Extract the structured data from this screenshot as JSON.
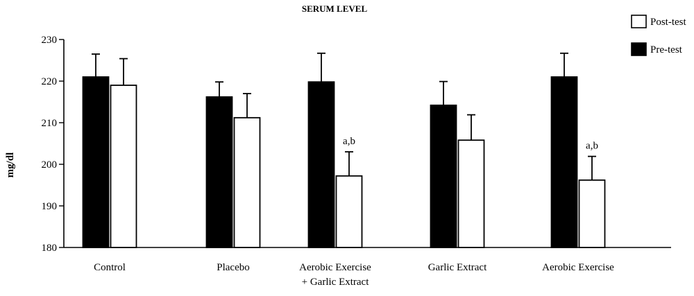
{
  "chart_data": {
    "type": "bar",
    "title": "SERUM LEVEL",
    "ylabel": "mg/dl",
    "xlabel": "",
    "ylim": [
      180,
      230
    ],
    "yticks": [
      180,
      190,
      200,
      210,
      220,
      230
    ],
    "grid": false,
    "legend_position": "top-right",
    "categories": [
      "Control",
      "Placebo",
      "Aerobic Exercise\n+ Garlic Extract",
      "Garlic Extract",
      "Aerobic Exercise"
    ],
    "series": [
      {
        "name": "Pre-test",
        "color": "#000000",
        "values": [
          221.0,
          216.2,
          219.8,
          214.2,
          221.0
        ],
        "errors": [
          5.5,
          3.6,
          6.9,
          5.7,
          5.7
        ]
      },
      {
        "name": "Post-test",
        "color": "#ffffff",
        "values": [
          219.0,
          211.2,
          197.2,
          205.8,
          196.2
        ],
        "errors": [
          6.4,
          5.8,
          5.8,
          6.1,
          5.7
        ]
      }
    ],
    "annotations": [
      {
        "category_index": 2,
        "series": "Post-test",
        "text": "a,b"
      },
      {
        "category_index": 4,
        "series": "Post-test",
        "text": "a,b"
      }
    ]
  }
}
